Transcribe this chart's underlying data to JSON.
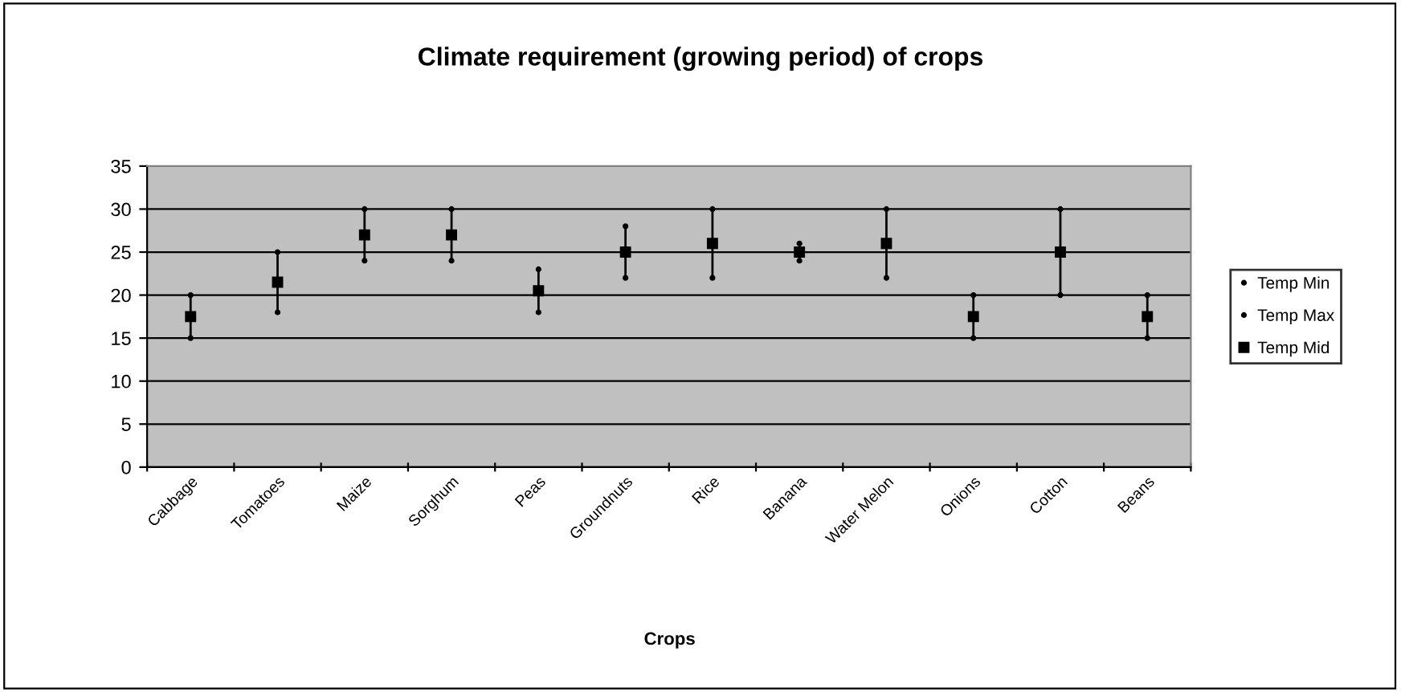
{
  "chart_data": {
    "type": "scatter",
    "title": "Climate requirement (growing period) of crops",
    "xlabel": "Crops",
    "categories": [
      "Cabbage",
      "Tomatoes",
      "Maize",
      "Sorghum",
      "Peas",
      "Groundnuts",
      "Rice",
      "Banana",
      "Water Melon",
      "Onions",
      "Cotton",
      "Beans"
    ],
    "series": [
      {
        "name": "Temp Min",
        "color": "#000000",
        "marker": "circle",
        "values": [
          15,
          18,
          24,
          24,
          18,
          22,
          22,
          24,
          22,
          15,
          20,
          15
        ]
      },
      {
        "name": "Temp Max",
        "color": "#000000",
        "marker": "circle",
        "values": [
          20,
          25,
          30,
          30,
          23,
          28,
          30,
          26,
          30,
          20,
          30,
          20
        ]
      },
      {
        "name": "Temp Mid",
        "color": "#000000",
        "marker": "square",
        "values": [
          17.5,
          21.5,
          27,
          27,
          20.5,
          25,
          26,
          25,
          26,
          17.5,
          25,
          17.5
        ]
      }
    ],
    "ylim": [
      0,
      35
    ],
    "yticks": [
      0,
      5,
      10,
      15,
      20,
      25,
      30,
      35
    ],
    "grid": "y",
    "legend": "right"
  }
}
